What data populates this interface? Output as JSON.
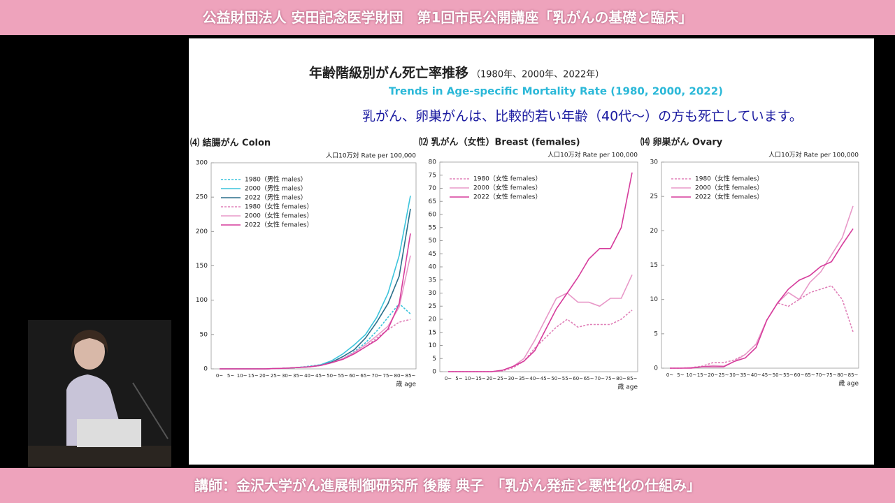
{
  "header": {
    "title": "公益財団法人 安田記念医学財団　第1回市民公開講座「乳がんの基礎と臨床」"
  },
  "footer": {
    "title": "講師：金沢大学がん進展制御研究所 後藤 典子　「乳がん発症と悪性化の仕組み」"
  },
  "slide": {
    "title": "年齢階級別がん死亡率推移",
    "title_years": "（1980年、2000年、2022年）",
    "subtitle": "Trends in Age-specific Mortality Rate (1980, 2000, 2022)",
    "note": "乳がん、卵巣がんは、比較的若い年齢（40代～）の方も死亡しています。"
  },
  "chart_data": [
    {
      "type": "line",
      "title": "⑷ 結腸がん Colon",
      "unit": "人口10万対 Rate per 100,000",
      "x_label": "歳 age",
      "categories": [
        "0~",
        "5~",
        "10~",
        "15~",
        "20~",
        "25~",
        "30~",
        "35~",
        "40~",
        "45~",
        "50~",
        "55~",
        "60~",
        "65~",
        "70~",
        "75~",
        "80~",
        "85~"
      ],
      "ylim": [
        0,
        300
      ],
      "yticks": [
        0,
        50,
        100,
        150,
        200,
        250,
        300
      ],
      "series": [
        {
          "name": "1980（男性 males）",
          "color": "#3cc4dc",
          "style": "dashed",
          "values": [
            0,
            0,
            0,
            0,
            0,
            0.5,
            1,
            2,
            4,
            6,
            10,
            15,
            25,
            38,
            55,
            75,
            95,
            80
          ]
        },
        {
          "name": "2000（男性 males）",
          "color": "#3cc4dc",
          "style": "solid",
          "values": [
            0,
            0,
            0,
            0,
            0,
            0.5,
            1,
            2,
            3,
            6,
            12,
            22,
            35,
            50,
            75,
            110,
            165,
            252
          ]
        },
        {
          "name": "2022（男性 males）",
          "color": "#2a6f8a",
          "style": "solid",
          "values": [
            0,
            0,
            0,
            0,
            0,
            0.5,
            1,
            2,
            3,
            5,
            10,
            18,
            28,
            45,
            68,
            95,
            135,
            233
          ]
        },
        {
          "name": "1980（女性 females）",
          "color": "#e080b8",
          "style": "dashed",
          "values": [
            0,
            0,
            0,
            0,
            0,
            0.5,
            1,
            2,
            3,
            5,
            9,
            15,
            22,
            32,
            45,
            57,
            68,
            72
          ]
        },
        {
          "name": "2000（女性 females）",
          "color": "#e898c8",
          "style": "solid",
          "values": [
            0,
            0,
            0,
            0,
            0,
            0.5,
            1,
            2,
            3,
            5,
            9,
            15,
            24,
            35,
            48,
            62,
            90,
            165
          ]
        },
        {
          "name": "2022（女性 females）",
          "color": "#d63c9c",
          "style": "solid",
          "values": [
            0,
            0,
            0,
            0,
            0,
            0.5,
            1,
            2,
            3,
            5,
            9,
            14,
            22,
            32,
            42,
            58,
            95,
            197
          ]
        }
      ]
    },
    {
      "type": "line",
      "title": "⑿ 乳がん（女性）Breast (females)",
      "unit": "人口10万対 Rate per 100,000",
      "x_label": "歳 age",
      "categories": [
        "0~",
        "5~",
        "10~",
        "15~",
        "20~",
        "25~",
        "30~",
        "35~",
        "40~",
        "45~",
        "50~",
        "55~",
        "60~",
        "65~",
        "70~",
        "75~",
        "80~",
        "85~"
      ],
      "ylim": [
        0,
        80
      ],
      "yticks": [
        0,
        5,
        10,
        15,
        20,
        25,
        30,
        35,
        40,
        45,
        50,
        55,
        60,
        65,
        70,
        75,
        80
      ],
      "series": [
        {
          "name": "1980（女性 females）",
          "color": "#e080b8",
          "style": "dashed",
          "values": [
            0,
            0,
            0,
            0,
            0,
            0.3,
            1.5,
            4,
            9,
            13,
            17,
            20,
            17,
            18,
            18,
            18,
            20,
            23.5
          ]
        },
        {
          "name": "2000（女性 females）",
          "color": "#e898c8",
          "style": "solid",
          "values": [
            0,
            0,
            0,
            0,
            0,
            0.5,
            2,
            5,
            12,
            20,
            28,
            30,
            26.5,
            26.5,
            25,
            28,
            28,
            37
          ]
        },
        {
          "name": "2022（女性 females）",
          "color": "#d63c9c",
          "style": "solid",
          "values": [
            0,
            0,
            0,
            0,
            0,
            0.5,
            2,
            4,
            8,
            16,
            24,
            30,
            36,
            43,
            47,
            47,
            55,
            76
          ]
        }
      ]
    },
    {
      "type": "line",
      "title": "⒁ 卵巣がん Ovary",
      "unit": "人口10万対 Rate per 100,000",
      "x_label": "歳 age",
      "categories": [
        "0~",
        "5~",
        "10~",
        "15~",
        "20~",
        "25~",
        "30~",
        "35~",
        "40~",
        "45~",
        "50~",
        "55~",
        "60~",
        "65~",
        "70~",
        "75~",
        "80~",
        "85~"
      ],
      "ylim": [
        0,
        30
      ],
      "yticks": [
        0,
        5,
        10,
        15,
        20,
        25,
        30
      ],
      "series": [
        {
          "name": "1980（女性 females）",
          "color": "#e080b8",
          "style": "dashed",
          "values": [
            0,
            0,
            0.1,
            0.3,
            0.8,
            0.8,
            1.2,
            2,
            3.5,
            7,
            9.5,
            9,
            10,
            11,
            11.5,
            12,
            10,
            5.3
          ]
        },
        {
          "name": "2000（女性 females）",
          "color": "#e898c8",
          "style": "solid",
          "values": [
            0,
            0,
            0.1,
            0.2,
            0.4,
            0.3,
            1,
            2,
            3.5,
            7,
            9.5,
            11,
            10,
            12.5,
            14,
            16.5,
            19,
            23.6
          ]
        },
        {
          "name": "2022（女性 females）",
          "color": "#d63c9c",
          "style": "solid",
          "values": [
            0,
            0,
            0,
            0.2,
            0.2,
            0.2,
            1,
            1.5,
            3,
            7,
            9.5,
            11.5,
            12.8,
            13.5,
            14.8,
            15.5,
            18,
            20.3
          ]
        }
      ]
    }
  ]
}
